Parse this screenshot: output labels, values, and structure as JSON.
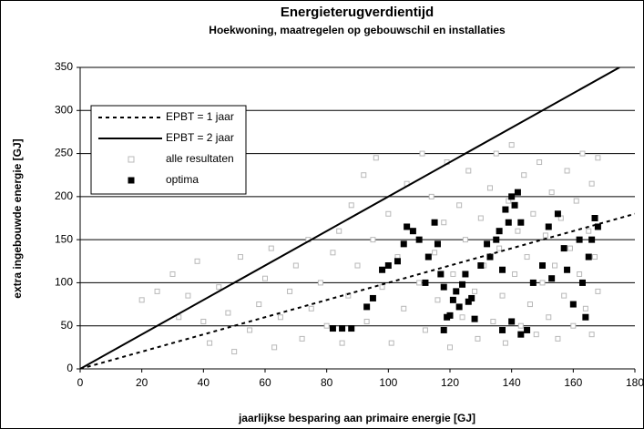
{
  "chart_data": {
    "type": "scatter",
    "title": "Energieterugverdientijd",
    "subtitle": "Hoekwoning, maatregelen op gebouwschil en installaties",
    "x_label": "jaarlijkse besparing aan primaire energie [GJ]",
    "y_label": "extra ingebouwde energie [GJ]",
    "xlim": [
      0,
      180
    ],
    "ylim": [
      0,
      350
    ],
    "xticks": [
      0,
      20,
      40,
      60,
      80,
      100,
      120,
      140,
      160,
      180
    ],
    "yticks": [
      0,
      50,
      100,
      150,
      200,
      250,
      300,
      350
    ],
    "grid": true,
    "legend": "upper left",
    "series": [
      {
        "name": "EPBT = 1 jaar",
        "style": "dashed-line",
        "color": "#000000",
        "x": [
          0,
          180
        ],
        "values": [
          0,
          180
        ]
      },
      {
        "name": "EPBT = 2 jaar",
        "style": "solid-line",
        "color": "#000000",
        "x": [
          0,
          175
        ],
        "values": [
          0,
          350
        ]
      },
      {
        "name": "alle resultaten",
        "style": "hollow-square",
        "color": "#b8b8b8",
        "x": [
          20,
          25,
          30,
          32,
          35,
          38,
          40,
          42,
          45,
          48,
          50,
          52,
          55,
          58,
          60,
          62,
          63,
          65,
          68,
          70,
          72,
          74,
          75,
          78,
          80,
          82,
          84,
          85,
          87,
          88,
          90,
          92,
          93,
          95,
          96,
          98,
          100,
          101,
          103,
          105,
          106,
          108,
          110,
          111,
          112,
          114,
          115,
          116,
          118,
          119,
          120,
          121,
          123,
          124,
          125,
          126,
          128,
          129,
          130,
          131,
          133,
          134,
          135,
          136,
          137,
          138,
          139,
          140,
          141,
          142,
          143,
          144,
          145,
          146,
          147,
          148,
          149,
          150,
          151,
          152,
          153,
          154,
          155,
          156,
          157,
          158,
          159,
          160,
          161,
          162,
          163,
          164,
          165,
          166,
          167,
          168,
          168,
          166
        ],
        "values": [
          80,
          90,
          110,
          60,
          85,
          125,
          55,
          30,
          95,
          65,
          20,
          130,
          45,
          75,
          105,
          140,
          25,
          60,
          90,
          120,
          35,
          150,
          70,
          100,
          50,
          135,
          160,
          30,
          85,
          190,
          120,
          225,
          55,
          150,
          245,
          95,
          180,
          30,
          130,
          70,
          215,
          160,
          100,
          250,
          45,
          200,
          135,
          80,
          170,
          240,
          25,
          110,
          190,
          60,
          150,
          230,
          90,
          35,
          175,
          120,
          210,
          55,
          250,
          140,
          85,
          30,
          195,
          260,
          110,
          160,
          50,
          225,
          130,
          75,
          180,
          40,
          240,
          100,
          155,
          60,
          205,
          120,
          35,
          175,
          85,
          230,
          140,
          50,
          195,
          110,
          250,
          70,
          160,
          215,
          130,
          245,
          90,
          40
        ]
      },
      {
        "name": "optima",
        "style": "square",
        "color": "#000000",
        "x": [
          82,
          85,
          88,
          93,
          95,
          98,
          100,
          103,
          105,
          106,
          108,
          110,
          112,
          113,
          115,
          116,
          117,
          118,
          118,
          119,
          120,
          121,
          122,
          123,
          124,
          125,
          126,
          127,
          128,
          130,
          132,
          133,
          135,
          136,
          137,
          138,
          139,
          140,
          141,
          142,
          143,
          137,
          140,
          143,
          145,
          147,
          150,
          152,
          155,
          158,
          160,
          162,
          163,
          164,
          165,
          166,
          167,
          168,
          153,
          157
        ],
        "values": [
          47,
          47,
          47,
          72,
          82,
          115,
          120,
          125,
          145,
          165,
          160,
          150,
          100,
          130,
          170,
          145,
          110,
          95,
          45,
          60,
          62,
          80,
          90,
          72,
          98,
          110,
          78,
          82,
          58,
          120,
          145,
          130,
          150,
          160,
          115,
          185,
          170,
          200,
          190,
          205,
          170,
          45,
          55,
          40,
          45,
          100,
          120,
          165,
          180,
          115,
          75,
          150,
          100,
          60,
          130,
          150,
          175,
          165,
          105,
          140
        ]
      }
    ]
  }
}
